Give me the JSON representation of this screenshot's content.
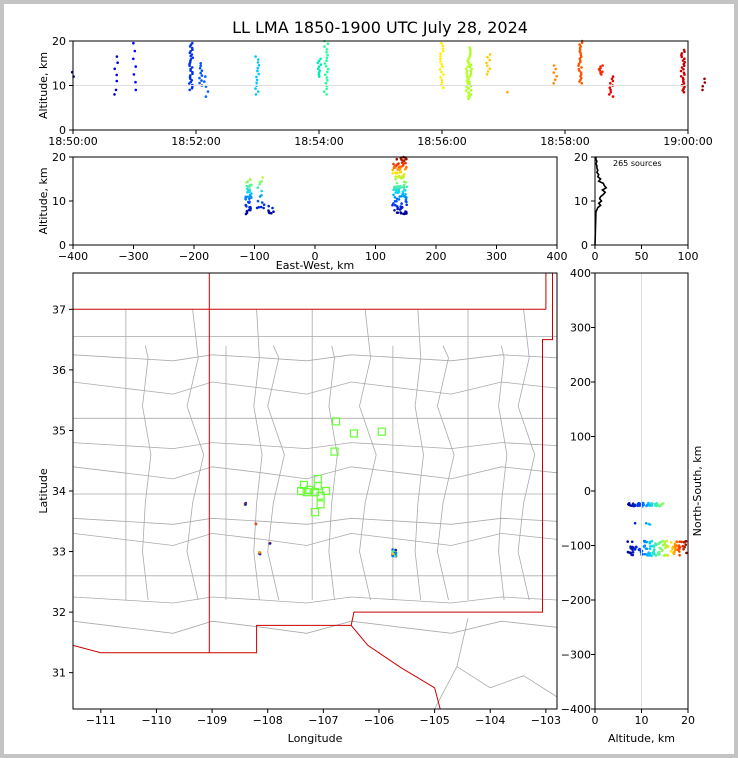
{
  "title": "LL LMA 1850-1900 UTC July 28, 2024",
  "colors": {
    "state_border": "#cc0000",
    "county_border": "#aaaaaa",
    "station": "#66ff33",
    "frame_bg": "#c4c4c4"
  },
  "chart_data": [
    {
      "id": "time-altitude",
      "type": "scatter",
      "xlabel": "",
      "ylabel": "Altitude, km",
      "xlim": [
        "18:50:00",
        "19:00:00"
      ],
      "ylim": [
        0,
        20
      ],
      "xticks": [
        "18:50:00",
        "18:52:00",
        "18:54:00",
        "18:56:00",
        "18:58:00",
        "19:00:00"
      ],
      "yticks": [
        "0",
        "10",
        "20"
      ],
      "grid": "horizontal at 10",
      "bursts": [
        {
          "t": "18:50:00",
          "alt_min": 12,
          "alt_max": 13,
          "n": 2,
          "color": "#00008b"
        },
        {
          "t": "18:50:40",
          "alt_min": 8,
          "alt_max": 9,
          "n": 2,
          "color": "#0000cd"
        },
        {
          "t": "18:50:42",
          "alt_min": 11,
          "alt_max": 16.5,
          "n": 5,
          "color": "#0000dd"
        },
        {
          "t": "18:51:00",
          "alt_min": 9,
          "alt_max": 19.5,
          "n": 7,
          "color": "#0000ff"
        },
        {
          "t": "18:51:55",
          "alt_min": 9,
          "alt_max": 19.5,
          "n": 30,
          "color": "#0033ee"
        },
        {
          "t": "18:52:05",
          "alt_min": 10,
          "alt_max": 15,
          "n": 10,
          "color": "#0055ff"
        },
        {
          "t": "18:52:10",
          "alt_min": 7.5,
          "alt_max": 12,
          "n": 5,
          "color": "#0066ff"
        },
        {
          "t": "18:53:00",
          "alt_min": 8,
          "alt_max": 16.5,
          "n": 14,
          "color": "#00c8ff"
        },
        {
          "t": "18:54:00",
          "alt_min": 12,
          "alt_max": 16,
          "n": 10,
          "color": "#00eeb0"
        },
        {
          "t": "18:54:07",
          "alt_min": 8,
          "alt_max": 20,
          "n": 20,
          "color": "#22ff99"
        },
        {
          "t": "18:56:27",
          "alt_min": 7,
          "alt_max": 18.5,
          "n": 25,
          "color": "#aaff22"
        },
        {
          "t": "18:56:25",
          "alt_min": 7.5,
          "alt_max": 16,
          "n": 20,
          "color": "#bbff33"
        },
        {
          "t": "18:56:00",
          "alt_min": 9.5,
          "alt_max": 19.5,
          "n": 18,
          "color": "#ffee00"
        },
        {
          "t": "18:56:45",
          "alt_min": 12.5,
          "alt_max": 17,
          "n": 8,
          "color": "#ffcc00"
        },
        {
          "t": "18:57:05",
          "alt_min": 8.5,
          "alt_max": 8.5,
          "n": 1,
          "color": "#ffaa00"
        },
        {
          "t": "18:57:50",
          "alt_min": 10.5,
          "alt_max": 14.5,
          "n": 6,
          "color": "#ff8800"
        },
        {
          "t": "18:58:15",
          "alt_min": 10.5,
          "alt_max": 20,
          "n": 25,
          "color": "#ff5500"
        },
        {
          "t": "18:58:35",
          "alt_min": 12.5,
          "alt_max": 14.5,
          "n": 8,
          "color": "#ff2200"
        },
        {
          "t": "18:58:45",
          "alt_min": 7.5,
          "alt_max": 12,
          "n": 10,
          "color": "#ee0000"
        },
        {
          "t": "18:59:55",
          "alt_min": 8.5,
          "alt_max": 18,
          "n": 25,
          "color": "#cc0000"
        },
        {
          "t": "19:00:15",
          "alt_min": 9,
          "alt_max": 11.5,
          "n": 4,
          "color": "#990000"
        }
      ]
    },
    {
      "id": "ew-altitude",
      "type": "scatter",
      "xlabel": "East-West, km",
      "ylabel": "Altitude, km",
      "xlim": [
        -400,
        400
      ],
      "ylim": [
        0,
        20
      ],
      "xticks": [
        "−400",
        "−300",
        "−200",
        "−100",
        "0",
        "100",
        "200",
        "300",
        "400"
      ],
      "yticks": [
        "0",
        "10",
        "20"
      ],
      "clusters": [
        {
          "x": -110,
          "x_spread": 5,
          "alt_min": 7,
          "alt_max": 15,
          "n": 40
        },
        {
          "x": -90,
          "x_spread": 6,
          "alt_min": 8,
          "alt_max": 15.5,
          "n": 15
        },
        {
          "x": -72,
          "x_spread": 5,
          "alt_min": 7,
          "alt_max": 9,
          "n": 8
        },
        {
          "x": 140,
          "x_spread": 12,
          "alt_min": 7,
          "alt_max": 20,
          "n": 120
        }
      ]
    },
    {
      "id": "altitude-histogram",
      "type": "line",
      "xlim": [
        0,
        100
      ],
      "ylim": [
        0,
        20
      ],
      "xticks": [
        "0",
        "50",
        "100"
      ],
      "yticks": [
        "0",
        "10",
        "20"
      ],
      "annotation": "265 sources",
      "profile": [
        [
          0.0,
          0
        ],
        [
          1,
          7.5
        ],
        [
          3,
          8.5
        ],
        [
          6,
          9
        ],
        [
          4,
          9.5
        ],
        [
          7,
          10
        ],
        [
          5,
          10.5
        ],
        [
          6,
          11
        ],
        [
          9,
          11.5
        ],
        [
          11,
          12
        ],
        [
          8,
          12.5
        ],
        [
          12,
          13
        ],
        [
          10,
          13.5
        ],
        [
          9,
          14
        ],
        [
          4,
          14.5
        ],
        [
          6,
          15
        ],
        [
          3,
          15.5
        ],
        [
          4,
          16
        ],
        [
          2,
          16.5
        ],
        [
          3,
          17
        ],
        [
          2,
          17.5
        ],
        [
          2,
          18
        ],
        [
          1,
          18.5
        ],
        [
          2,
          19
        ],
        [
          1,
          19.5
        ],
        [
          1,
          20
        ]
      ]
    },
    {
      "id": "plan-view-map",
      "type": "scatter",
      "xlabel": "Longitude",
      "ylabel": "Latitude",
      "xlim": [
        -111.5,
        -102.8
      ],
      "ylim": [
        30.4,
        37.6
      ],
      "xticks": [
        "−111",
        "−110",
        "−109",
        "−108",
        "−107",
        "−106",
        "−105",
        "−104",
        "−103"
      ],
      "yticks": [
        "31",
        "32",
        "33",
        "34",
        "35",
        "36",
        "37"
      ],
      "stations": [
        {
          "lon": -106.77,
          "lat": 35.15
        },
        {
          "lon": -106.45,
          "lat": 34.95
        },
        {
          "lon": -105.95,
          "lat": 34.98
        },
        {
          "lon": -106.8,
          "lat": 34.65
        },
        {
          "lon": -107.1,
          "lat": 34.2
        },
        {
          "lon": -107.35,
          "lat": 34.1
        },
        {
          "lon": -107.1,
          "lat": 34.08
        },
        {
          "lon": -107.25,
          "lat": 34.02
        },
        {
          "lon": -107.4,
          "lat": 34.0
        },
        {
          "lon": -107.3,
          "lat": 33.98
        },
        {
          "lon": -107.15,
          "lat": 33.98
        },
        {
          "lon": -106.95,
          "lat": 34.0
        },
        {
          "lon": -107.05,
          "lat": 33.92
        },
        {
          "lon": -107.05,
          "lat": 33.78
        },
        {
          "lon": -107.15,
          "lat": 33.65
        }
      ],
      "clusters": [
        {
          "lon": -108.4,
          "lat": 33.78,
          "n": 6
        },
        {
          "lon": -108.2,
          "lat": 33.45,
          "n": 3
        },
        {
          "lon": -108.15,
          "lat": 32.97,
          "n": 6
        },
        {
          "lon": -107.95,
          "lat": 33.15,
          "n": 2
        },
        {
          "lon": -105.72,
          "lat": 32.98,
          "n": 45
        }
      ]
    },
    {
      "id": "altitude-northsouth",
      "type": "scatter",
      "xlabel": "Altitude, km",
      "ylabel": "North-South, km",
      "xlim": [
        0,
        20
      ],
      "ylim": [
        -400,
        400
      ],
      "xticks": [
        "0",
        "10",
        "20"
      ],
      "yticks": [
        "−400",
        "−300",
        "−200",
        "−100",
        "0",
        "100",
        "200",
        "300",
        "400"
      ],
      "clusters": [
        {
          "ns": -25,
          "ns_spread": 3,
          "alt_min": 7,
          "alt_max": 15,
          "n": 45
        },
        {
          "ns": -62,
          "ns_spread": 3,
          "alt_min": 7.5,
          "alt_max": 12,
          "n": 4
        },
        {
          "ns": -105,
          "ns_spread": 14,
          "alt_min": 7,
          "alt_max": 20,
          "n": 130
        }
      ]
    }
  ]
}
